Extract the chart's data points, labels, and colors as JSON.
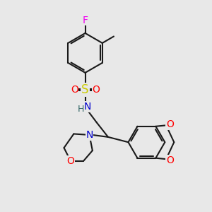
{
  "bg_color": "#e8e8e8",
  "bond_color": "#1a1a1a",
  "bond_width": 1.5,
  "dbo": 0.07,
  "F_color": "#ee00ee",
  "O_color": "#ff0000",
  "N_color": "#0000cc",
  "S_color": "#cccc00",
  "H_color": "#336666",
  "font_size": 10,
  "xlim": [
    0,
    10
  ],
  "ylim": [
    0,
    10
  ]
}
